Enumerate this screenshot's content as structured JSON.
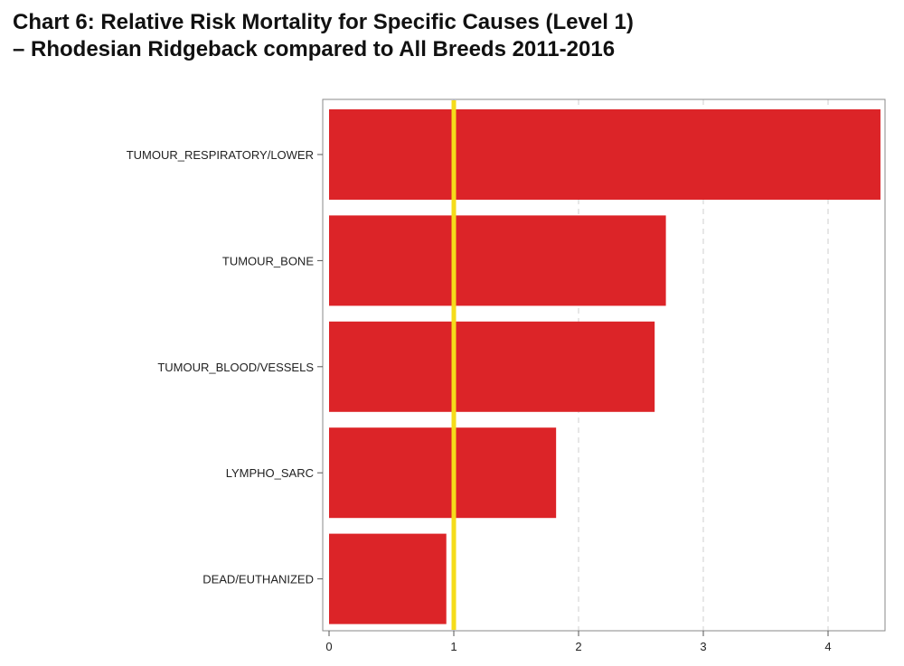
{
  "title_line1": "Chart 6: Relative Risk Mortality for Specific Causes (Level 1)",
  "title_line2": "–  Rhodesian Ridgeback compared to All Breeds 2011-2016",
  "chart_data": {
    "type": "bar",
    "orientation": "horizontal",
    "categories": [
      "TUMOUR_RESPIRATORY/LOWER",
      "TUMOUR_BONE",
      "TUMOUR_BLOOD/VESSELS",
      "LYMPHO_SARC",
      "DEAD/EUTHANIZED"
    ],
    "values": [
      4.42,
      2.7,
      2.61,
      1.82,
      0.94
    ],
    "xlim": [
      0,
      4.48
    ],
    "xticks": [
      0,
      1,
      2,
      3,
      4
    ],
    "reference_line": 1,
    "bar_color": "#dc2428",
    "reference_color": "#f5dc1a",
    "grid": "vertical dashed",
    "xlabel": "",
    "ylabel": ""
  }
}
